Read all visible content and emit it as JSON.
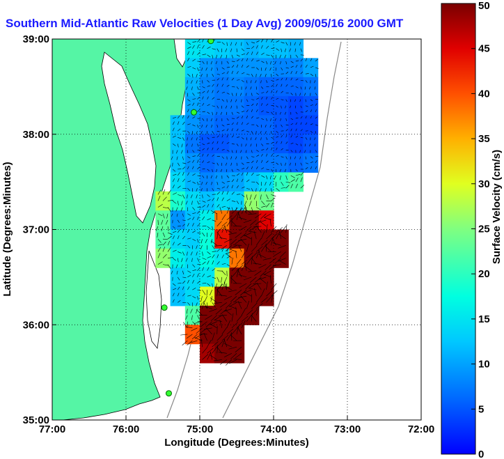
{
  "chart_data": {
    "type": "heatmap",
    "title": "Southern Mid-Atlantic Raw Velocities (1 Day Avg) 2009/05/16 2000 GMT",
    "xlabel": "Longitude (Degrees:Minutes)",
    "ylabel": "Latitude (Degrees:Minutes)",
    "xlim": [
      -77,
      -72
    ],
    "ylim": [
      35,
      39
    ],
    "xticks": [
      {
        "value": -77,
        "label": "77:00"
      },
      {
        "value": -76,
        "label": "76:00"
      },
      {
        "value": -75,
        "label": "75:00"
      },
      {
        "value": -74,
        "label": "74:00"
      },
      {
        "value": -73,
        "label": "73:00"
      },
      {
        "value": -72,
        "label": "72:00"
      }
    ],
    "yticks": [
      {
        "value": 35,
        "label": "35:00"
      },
      {
        "value": 36,
        "label": "36:00"
      },
      {
        "value": 37,
        "label": "37:00"
      },
      {
        "value": 38,
        "label": "38:00"
      },
      {
        "value": 39,
        "label": "39:00"
      }
    ],
    "grid": "dotted",
    "colorbar": {
      "label": "Surface Velocity (cm/s)",
      "min": 0,
      "max": 50,
      "ticks": [
        {
          "value": 0,
          "label": "0"
        },
        {
          "value": 5,
          "label": "5"
        },
        {
          "value": 10,
          "label": "10"
        },
        {
          "value": 15,
          "label": "15"
        },
        {
          "value": 20,
          "label": "20"
        },
        {
          "value": 25,
          "label": "25"
        },
        {
          "value": 30,
          "label": "30"
        },
        {
          "value": 35,
          "label": "35"
        },
        {
          "value": 40,
          "label": "40"
        },
        {
          "value": 45,
          "label": "45"
        },
        {
          "value": 50,
          "label": "50"
        }
      ],
      "colormap": "jet"
    },
    "land_color": "#55f5a5",
    "stations": [
      {
        "lon": -74.85,
        "lat": 38.98
      },
      {
        "lon": -75.08,
        "lat": 38.23
      },
      {
        "lon": -75.48,
        "lat": 36.18
      },
      {
        "lon": -75.42,
        "lat": 35.28
      }
    ],
    "speed_field": {
      "lon0": -75.6,
      "dlon": 0.2,
      "lat_max": 39.0,
      "dlat": 0.2,
      "rows": [
        [
          -1,
          -1,
          15,
          14,
          13,
          12,
          11,
          12,
          12,
          11,
          -1
        ],
        [
          -1,
          -1,
          13,
          9,
          8,
          9,
          9,
          9,
          8,
          8,
          10
        ],
        [
          -1,
          -1,
          11,
          8,
          7,
          8,
          7,
          6,
          6,
          6,
          7
        ],
        [
          -1,
          -1,
          10,
          8,
          7,
          7,
          6,
          5,
          5,
          4,
          5
        ],
        [
          -1,
          12,
          9,
          7,
          6,
          6,
          6,
          6,
          5,
          4,
          4
        ],
        [
          -1,
          12,
          7,
          5,
          5,
          6,
          6,
          6,
          5,
          4,
          5
        ],
        [
          -1,
          12,
          9,
          6,
          7,
          7,
          7,
          7,
          7,
          6,
          7
        ],
        [
          -1,
          14,
          11,
          8,
          9,
          10,
          12,
          14,
          20,
          22,
          -1
        ],
        [
          28,
          19,
          14,
          12,
          14,
          13,
          26,
          24,
          -1,
          -1,
          -1
        ],
        [
          23,
          9,
          12,
          16,
          38,
          50,
          50,
          45,
          -1,
          -1,
          -1
        ],
        [
          22,
          14,
          13,
          18,
          44,
          50,
          50,
          50,
          50,
          -1,
          -1
        ],
        [
          26,
          16,
          14,
          17,
          15,
          38,
          50,
          50,
          50,
          -1,
          -1
        ],
        [
          -1,
          13,
          14,
          15,
          28,
          50,
          50,
          50,
          -1,
          -1,
          -1
        ],
        [
          -1,
          12,
          14,
          30,
          50,
          50,
          50,
          50,
          -1,
          -1,
          -1
        ],
        [
          -1,
          -1,
          22,
          50,
          50,
          50,
          50,
          -1,
          -1,
          -1,
          -1
        ],
        [
          -1,
          -1,
          40,
          50,
          50,
          50,
          -1,
          -1,
          -1,
          -1,
          -1
        ],
        [
          -1,
          -1,
          -1,
          48,
          50,
          50,
          -1,
          -1,
          -1,
          -1,
          -1
        ]
      ]
    }
  }
}
